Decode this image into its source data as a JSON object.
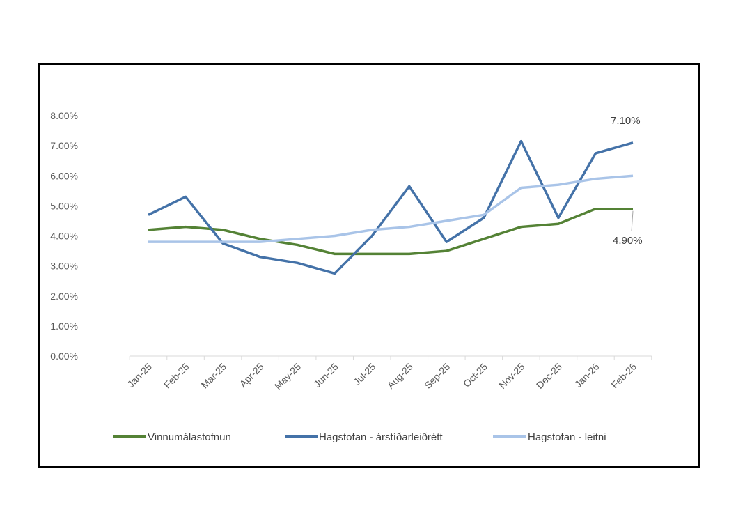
{
  "chart_data": {
    "type": "line",
    "title": "",
    "xlabel": "",
    "ylabel": "",
    "categories": [
      "Jan-25",
      "Feb-25",
      "Mar-25",
      "Apr-25",
      "May-25",
      "Jun-25",
      "Jul-25",
      "Aug-25",
      "Sep-25",
      "Oct-25",
      "Nov-25",
      "Dec-25",
      "Jan-26",
      "Feb-26"
    ],
    "ylim": [
      0,
      8
    ],
    "yticks": [
      "0.00%",
      "1.00%",
      "2.00%",
      "3.00%",
      "4.00%",
      "5.00%",
      "6.00%",
      "7.00%",
      "8.00%"
    ],
    "grid": false,
    "legend_position": "bottom",
    "series": [
      {
        "name": "Vinnumálastofnun",
        "color": "#548235",
        "values": [
          4.2,
          4.3,
          4.2,
          3.9,
          3.7,
          3.4,
          3.4,
          3.4,
          3.5,
          3.9,
          4.3,
          4.4,
          4.9,
          4.9
        ]
      },
      {
        "name": "Hagstofan - árstíðarleiðrétt",
        "color": "#4472A8",
        "values": [
          4.7,
          5.3,
          3.75,
          3.3,
          3.1,
          2.75,
          4.0,
          5.65,
          3.8,
          4.6,
          7.15,
          4.6,
          6.75,
          7.1
        ]
      },
      {
        "name": "Hagstofan - leitni",
        "color": "#A9C4E8",
        "values": [
          3.8,
          3.8,
          3.8,
          3.8,
          3.9,
          4.0,
          4.2,
          4.3,
          4.5,
          4.7,
          5.6,
          5.7,
          5.9,
          6.0
        ]
      }
    ],
    "annotations": [
      {
        "series": 1,
        "index": 13,
        "text": "7.10%"
      },
      {
        "series": 0,
        "index": 13,
        "text": "4.90%"
      }
    ]
  }
}
